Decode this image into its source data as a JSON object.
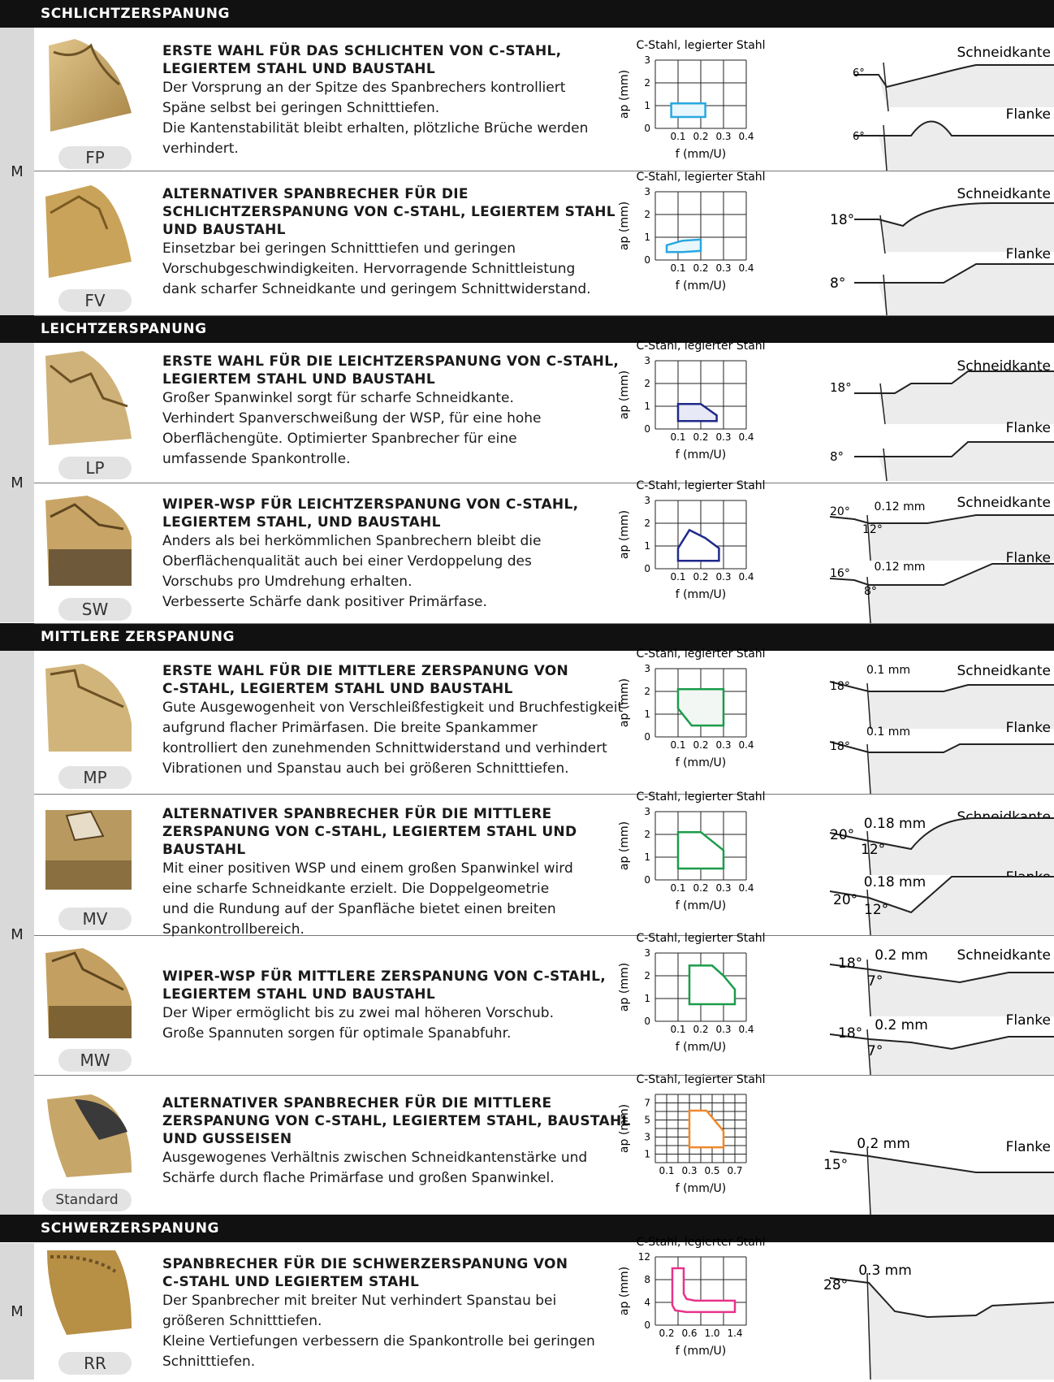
{
  "sections": {
    "schlicht": "SCHLICHTZERSPANUNG",
    "leicht": "LEICHTZERSPANUNG",
    "mittel": "MITTLERE ZERSPANUNG",
    "schwer": "SCHWERZERSPANUNG"
  },
  "m_label": "M",
  "chart_common": {
    "material": "C-Stahl, legierter Stahl",
    "ylabel": "ap (mm)",
    "xlabel": "f (mm/U)"
  },
  "geom_labels": {
    "edge": "Schneidkante",
    "flank": "Flanke"
  },
  "rows": {
    "fp": {
      "code": "FP",
      "title1": "ERSTE WAHL FÜR DAS SCHLICHTEN VON C-STAHL,",
      "title2": "LEGIERTEM STAHL UND BAUSTAHL",
      "d1": "Der Vorsprung an der Spitze des Spanbrechers kontrolliert",
      "d2": "Späne selbst bei geringen Schnitttiefen.",
      "d3": "Die Kantenstabilität bleibt erhalten, plötzliche Brüche werden",
      "d4": "verhindert.",
      "angle_edge": "6°",
      "angle_flank": "6°"
    },
    "fv": {
      "code": "FV",
      "title1": "ALTERNATIVER SPANBRECHER FÜR DIE",
      "title2": "SCHLICHTZERSPANUNG VON C-STAHL, LEGIERTEM STAHL",
      "title3": "UND BAUSTAHL",
      "d1": "Einsetzbar bei geringen Schnitttiefen und geringen",
      "d2": "Vorschubgeschwindigkeiten. Hervorragende Schnittleistung",
      "d3": "dank scharfer Schneidkante und geringem Schnittwiderstand.",
      "angle_edge": "18°",
      "angle_flank": "8°"
    },
    "lp": {
      "code": "LP",
      "title1": "ERSTE WAHL FÜR DIE LEICHTZERSPANUNG VON C-STAHL,",
      "title2": "LEGIERTEM STAHL UND BAUSTAHL",
      "d1": "Großer Spanwinkel sorgt für scharfe Schneidkante.",
      "d2": "Verhindert Spanverschweißung der WSP, für eine hohe",
      "d3": "Oberflächengüte. Optimierter Spanbrecher für eine",
      "d4": "umfassende Spankontrolle.",
      "angle_edge": "18°",
      "angle_flank": "8°"
    },
    "sw": {
      "code": "SW",
      "title1": "WIPER-WSP FÜR LEICHTZERSPANUNG VON C-STAHL,",
      "title2": "LEGIERTEM STAHL, UND BAUSTAHL",
      "d1": "Anders als bei herkömmlichen Spanbrechern bleibt die",
      "d2": "Oberflächenqualität auch bei einer Verdoppelung des",
      "d3": "Vorschubs pro Umdrehung erhalten.",
      "d4": "Verbesserte Schärfe dank positiver Primärfase.",
      "e_a1": "20°",
      "e_w": "0.12 mm",
      "e_a2": "12°",
      "f_a1": "16°",
      "f_w": "0.12 mm",
      "f_a2": "8°"
    },
    "mp": {
      "code": "MP",
      "title1": "ERSTE WAHL FÜR DIE MITTLERE ZERSPANUNG VON",
      "title2": "C-STAHL, LEGIERTEM STAHL UND BAUSTAHL",
      "d1": "Gute Ausgewogenheit von Verschleißfestigkeit und Bruchfestigkeit",
      "d2": "aufgrund flacher Primärfasen. Die breite Spankammer",
      "d3": "kontrolliert den zunehmenden Schnittwiderstand und verhindert",
      "d4": "Vibrationen und Spanstau auch bei größeren Schnitttiefen.",
      "e_a1": "18°",
      "e_w": "0.1 mm",
      "f_a1": "18°",
      "f_w": "0.1 mm"
    },
    "mv": {
      "code": "MV",
      "title1": "ALTERNATIVER SPANBRECHER FÜR DIE MITTLERE",
      "title2": "ZERSPANUNG VON C-STAHL, LEGIERTEM STAHL UND BAUSTAHL",
      "d1": "Mit einer positiven WSP und einem großen Spanwinkel wird",
      "d2": "eine scharfe Schneidkante erzielt. Die Doppelgeometrie",
      "d3": "und die Rundung auf der Spanfläche bietet einen breiten",
      "d4": "Spankontrollbereich.",
      "e_a1": "20°",
      "e_w": "0.18 mm",
      "e_a2": "12°",
      "f_a1": "20°",
      "f_w": "0.18 mm",
      "f_a2": "12°"
    },
    "mw": {
      "code": "MW",
      "title1": "WIPER-WSP FÜR MITTLERE ZERSPANUNG VON C-STAHL,",
      "title2": "LEGIERTEM STAHL UND BAUSTAHL",
      "d1": "Der Wiper ermöglicht bis zu zwei mal höheren Vorschub.",
      "d2": "Große Spannuten sorgen für optimale Spanabfuhr.",
      "e_a1": "18°",
      "e_w": "0.2 mm",
      "e_a2": "7°",
      "f_a1": "18°",
      "f_w": "0.2 mm",
      "f_a2": "7°"
    },
    "std": {
      "code": "Standard",
      "title1": "ALTERNATIVER SPANBRECHER FÜR DIE MITTLERE",
      "title2": "ZERSPANUNG VON C-STAHL, LEGIERTEM STAHL, BAUSTAHL",
      "title3": "UND GUSSEISEN",
      "d1": "Ausgewogenes Verhältnis zwischen Schneidkantenstärke und",
      "d2": "Schärfe durch flache Primärfase und großen Spanwinkel.",
      "f_a1": "15°",
      "f_w": "0.2 mm"
    },
    "rr": {
      "code": "RR",
      "title1": "SPANBRECHER FÜR DIE SCHWERZERSPANUNG VON",
      "title2": "C-STAHL UND LEGIERTEM STAHL",
      "d1": "Der Spanbrecher mit breiter Nut verhindert Spanstau bei",
      "d2": "größeren Schnitttiefen.",
      "d3": "Kleine Vertiefungen verbessern die Spankontrolle bei geringen",
      "d4": "Schnitttiefen.",
      "e_a1": "28°",
      "e_w": "0.3 mm"
    }
  },
  "chart_data": [
    {
      "id": "fp",
      "type": "area",
      "title": "C-Stahl, legierter Stahl",
      "xlabel": "f (mm/U)",
      "ylabel": "ap (mm)",
      "xlim": [
        0,
        0.4
      ],
      "ylim": [
        0,
        3
      ],
      "xticks": [
        "0.1",
        "0.2",
        "0.3",
        "0.4"
      ],
      "yticks": [
        "0",
        "1",
        "2",
        "3"
      ],
      "color": "#29a8e0",
      "fill": "#e8f6fd",
      "polygon": [
        [
          0.07,
          0.5
        ],
        [
          0.22,
          0.5
        ],
        [
          0.22,
          1.1
        ],
        [
          0.07,
          1.1
        ]
      ]
    },
    {
      "id": "fv",
      "type": "area",
      "title": "C-Stahl, legierter Stahl",
      "xlabel": "f (mm/U)",
      "ylabel": "ap (mm)",
      "xlim": [
        0,
        0.4
      ],
      "ylim": [
        0,
        3
      ],
      "xticks": [
        "0.1",
        "0.2",
        "0.3",
        "0.4"
      ],
      "yticks": [
        "0",
        "1",
        "2",
        "3"
      ],
      "color": "#29a8e0",
      "fill": "#e8f6fd",
      "polygon": [
        [
          0.05,
          0.35
        ],
        [
          0.05,
          0.65
        ],
        [
          0.12,
          0.85
        ],
        [
          0.2,
          0.9
        ],
        [
          0.2,
          0.4
        ],
        [
          0.12,
          0.35
        ]
      ]
    },
    {
      "id": "lp",
      "type": "area",
      "title": "C-Stahl, legierter Stahl",
      "xlabel": "f (mm/U)",
      "ylabel": "ap (mm)",
      "xlim": [
        0,
        0.4
      ],
      "ylim": [
        0,
        3
      ],
      "xticks": [
        "0.1",
        "0.2",
        "0.3",
        "0.4"
      ],
      "yticks": [
        "0",
        "1",
        "2",
        "3"
      ],
      "color": "#1f2a8a",
      "fill": "#e8e9f6",
      "polygon": [
        [
          0.1,
          0.35
        ],
        [
          0.27,
          0.35
        ],
        [
          0.27,
          0.6
        ],
        [
          0.2,
          1.1
        ],
        [
          0.1,
          1.1
        ]
      ]
    },
    {
      "id": "sw",
      "type": "area",
      "title": "C-Stahl, legierter Stahl",
      "xlabel": "f (mm/U)",
      "ylabel": "ap (mm)",
      "xlim": [
        0,
        0.4
      ],
      "ylim": [
        0,
        3
      ],
      "xticks": [
        "0.1",
        "0.2",
        "0.3",
        "0.4"
      ],
      "yticks": [
        "0",
        "1",
        "2",
        "3"
      ],
      "color": "#1f2a8a",
      "fill": "#ffffff",
      "polygon": [
        [
          0.1,
          0.35
        ],
        [
          0.1,
          0.9
        ],
        [
          0.15,
          1.7
        ],
        [
          0.22,
          1.35
        ],
        [
          0.28,
          0.9
        ],
        [
          0.28,
          0.35
        ]
      ]
    },
    {
      "id": "mp",
      "type": "area",
      "title": "C-Stahl, legierter Stahl",
      "xlabel": "f (mm/U)",
      "ylabel": "ap (mm)",
      "xlim": [
        0,
        0.4
      ],
      "ylim": [
        0,
        3
      ],
      "xticks": [
        "0.1",
        "0.2",
        "0.3",
        "0.4"
      ],
      "yticks": [
        "0",
        "1",
        "2",
        "3"
      ],
      "color": "#1a9c4a",
      "fill": "#f2f7f4",
      "polygon": [
        [
          0.1,
          2.1
        ],
        [
          0.1,
          1.25
        ],
        [
          0.16,
          0.5
        ],
        [
          0.3,
          0.5
        ],
        [
          0.3,
          2.1
        ]
      ]
    },
    {
      "id": "mv",
      "type": "area",
      "title": "C-Stahl, legierter Stahl",
      "xlabel": "f (mm/U)",
      "ylabel": "ap (mm)",
      "xlim": [
        0,
        0.4
      ],
      "ylim": [
        0,
        3
      ],
      "xticks": [
        "0.1",
        "0.2",
        "0.3",
        "0.4"
      ],
      "yticks": [
        "0",
        "1",
        "2",
        "3"
      ],
      "color": "#1a9c4a",
      "fill": "#ffffff",
      "polygon": [
        [
          0.1,
          2.1
        ],
        [
          0.1,
          0.5
        ],
        [
          0.3,
          0.5
        ],
        [
          0.3,
          1.3
        ],
        [
          0.2,
          2.1
        ]
      ]
    },
    {
      "id": "mw",
      "type": "area",
      "title": "C-Stahl, legierter Stahl",
      "xlabel": "f (mm/U)",
      "ylabel": "ap (mm)",
      "xlim": [
        0,
        0.4
      ],
      "ylim": [
        0,
        3
      ],
      "xticks": [
        "0.1",
        "0.2",
        "0.3",
        "0.4"
      ],
      "yticks": [
        "0",
        "1",
        "2",
        "3"
      ],
      "color": "#1a9c4a",
      "fill": "#ffffff",
      "polygon": [
        [
          0.15,
          2.45
        ],
        [
          0.15,
          0.75
        ],
        [
          0.35,
          0.75
        ],
        [
          0.35,
          1.4
        ],
        [
          0.3,
          2.0
        ],
        [
          0.25,
          2.45
        ]
      ]
    },
    {
      "id": "std",
      "type": "area",
      "title": "C-Stahl, legierter Stahl",
      "xlabel": "f (mm/U)",
      "ylabel": "ap (mm)",
      "xlim": [
        0,
        0.8
      ],
      "ylim": [
        0,
        8
      ],
      "xticks": [
        "0.1",
        "0.3",
        "0.5",
        "0.7"
      ],
      "yticks": [
        "1",
        "3",
        "5",
        "7"
      ],
      "minor_grid": true,
      "color": "#f0882a",
      "fill": "#ffffff",
      "polygon": [
        [
          0.3,
          6.1
        ],
        [
          0.3,
          1.8
        ],
        [
          0.6,
          1.8
        ],
        [
          0.6,
          3.7
        ],
        [
          0.45,
          6.1
        ]
      ]
    },
    {
      "id": "rr",
      "type": "area",
      "title": "C-Stahl, legierter Stahl",
      "xlabel": "f (mm/U)",
      "ylabel": "ap (mm)",
      "xlim": [
        0,
        1.6
      ],
      "ylim": [
        0,
        12
      ],
      "xticks": [
        "0.2",
        "0.6",
        "1.0",
        "1.4"
      ],
      "yticks": [
        "0",
        "4",
        "8",
        "12"
      ],
      "color": "#e8328a",
      "fill": "#ffffff",
      "polygon": [
        [
          0.3,
          10
        ],
        [
          0.3,
          3.5
        ],
        [
          0.35,
          2.6
        ],
        [
          0.55,
          2.3
        ],
        [
          1.4,
          2.3
        ],
        [
          1.4,
          4.3
        ],
        [
          0.7,
          4.3
        ],
        [
          0.55,
          4.6
        ],
        [
          0.5,
          5.5
        ],
        [
          0.5,
          10
        ]
      ]
    }
  ]
}
